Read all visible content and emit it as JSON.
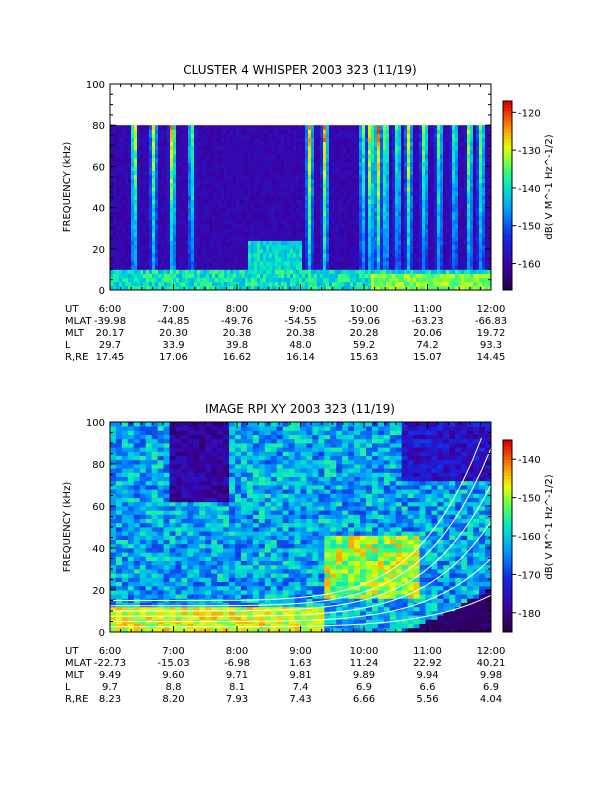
{
  "chart_data": [
    {
      "type": "heatmap",
      "title": "CLUSTER 4 WHISPER 2003 323 (11/19)",
      "ylabel": "FREQUENCY (kHz)",
      "colorbar_label": "dB( V M^-1 Hz^-1/2)",
      "ylim": [
        0,
        100
      ],
      "y_ticks": [
        "0",
        "20",
        "40",
        "60",
        "80",
        "100"
      ],
      "data_ceiling_khz": 80,
      "colorbar_range": [
        -167,
        -117
      ],
      "colorbar_ticks": [
        "-120",
        "-130",
        "-140",
        "-150",
        "-160"
      ],
      "x_ticks": [
        "6:00",
        "7:00",
        "8:00",
        "9:00",
        "10:00",
        "11:00",
        "12:00"
      ],
      "ephemeris": [
        {
          "label": "UT",
          "values": [
            "6:00",
            "7:00",
            "8:00",
            "9:00",
            "10:00",
            "11:00",
            "12:00"
          ]
        },
        {
          "label": "MLAT",
          "values": [
            "-39.98",
            "-44.85",
            "-49.76",
            "-54.55",
            "-59.06",
            "-63.23",
            "-66.83"
          ]
        },
        {
          "label": "MLT",
          "values": [
            "20.17",
            "20.30",
            "20.38",
            "20.38",
            "20.28",
            "20.06",
            "19.72"
          ]
        },
        {
          "label": "L",
          "values": [
            "29.7",
            "33.9",
            "39.8",
            "48.0",
            "59.2",
            "74.2",
            "93.3"
          ]
        },
        {
          "label": "R,RE",
          "values": [
            "17.45",
            "17.06",
            "16.62",
            "16.14",
            "15.63",
            "15.07",
            "14.45"
          ]
        }
      ]
    },
    {
      "type": "heatmap",
      "title": "IMAGE RPI XY 2003 323 (11/19)",
      "ylabel": "FREQUENCY (kHz)",
      "colorbar_label": "dB( V M^-1 Hz^-1/2)",
      "ylim": [
        0,
        100
      ],
      "y_ticks": [
        "0",
        "20",
        "40",
        "60",
        "80",
        "100"
      ],
      "colorbar_range": [
        -185,
        -135
      ],
      "colorbar_ticks": [
        "-140",
        "-150",
        "-160",
        "-170",
        "-180"
      ],
      "x_ticks": [
        "6:00",
        "7:00",
        "8:00",
        "9:00",
        "10:00",
        "11:00",
        "12:00"
      ],
      "ephemeris": [
        {
          "label": "UT",
          "values": [
            "6:00",
            "7:00",
            "8:00",
            "9:00",
            "10:00",
            "11:00",
            "12:00"
          ]
        },
        {
          "label": "MLAT",
          "values": [
            "-22.73",
            "-15.03",
            "-6.98",
            "1.63",
            "11.24",
            "22.92",
            "40.21"
          ]
        },
        {
          "label": "MLT",
          "values": [
            "9.49",
            "9.60",
            "9.71",
            "9.81",
            "9.89",
            "9.94",
            "9.98"
          ]
        },
        {
          "label": "L",
          "values": [
            "9.7",
            "8.8",
            "8.1",
            "7.4",
            "6.9",
            "6.6",
            "6.9"
          ]
        },
        {
          "label": "R,RE",
          "values": [
            "8.23",
            "8.20",
            "7.93",
            "7.43",
            "6.66",
            "5.56",
            "4.04"
          ]
        }
      ]
    }
  ]
}
